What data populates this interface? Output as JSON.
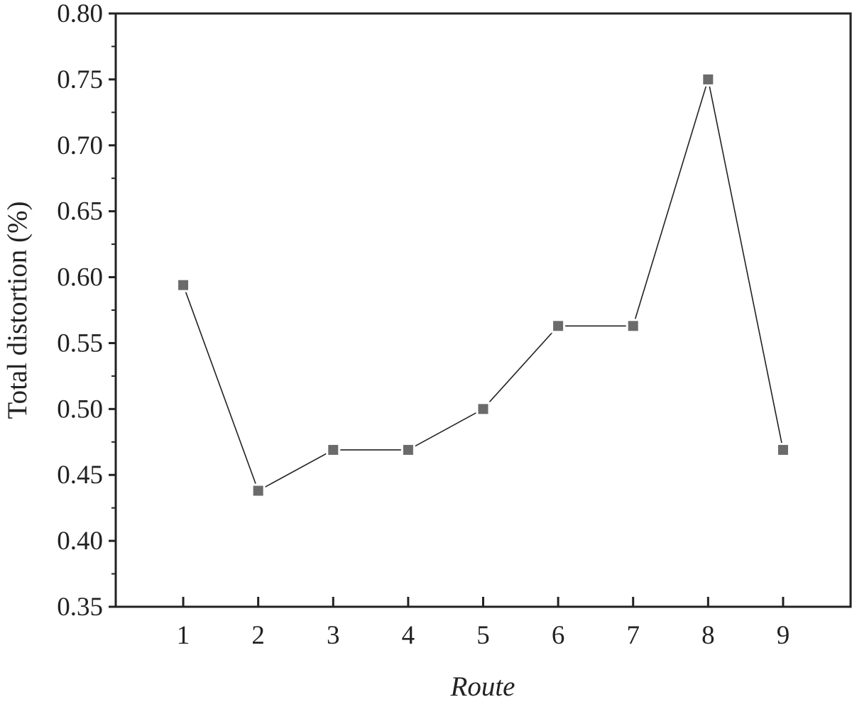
{
  "chart_data": {
    "type": "line",
    "title": "",
    "xlabel": "Route",
    "ylabel": "Total distortion (%)",
    "x": [
      1,
      2,
      3,
      4,
      5,
      6,
      7,
      8,
      9
    ],
    "x_tick_labels": [
      "1",
      "2",
      "3",
      "4",
      "5",
      "6",
      "7",
      "8",
      "9"
    ],
    "xlim": [
      0.1,
      9.9
    ],
    "ylim": [
      0.35,
      0.8
    ],
    "y_ticks": [
      0.35,
      0.4,
      0.45,
      0.5,
      0.55,
      0.6,
      0.65,
      0.7,
      0.75,
      0.8
    ],
    "y_tick_labels": [
      "0.35",
      "0.40",
      "0.45",
      "0.50",
      "0.55",
      "0.60",
      "0.65",
      "0.70",
      "0.75",
      "0.80"
    ],
    "grid": false,
    "legend": "none",
    "series": [
      {
        "name": "Total distortion",
        "marker": "square",
        "values": [
          0.594,
          0.438,
          0.469,
          0.469,
          0.5,
          0.563,
          0.563,
          0.75,
          0.469
        ]
      }
    ],
    "colors": {
      "marker": "#6b6b6b",
      "line": "#222222",
      "axis": "#222222"
    }
  }
}
